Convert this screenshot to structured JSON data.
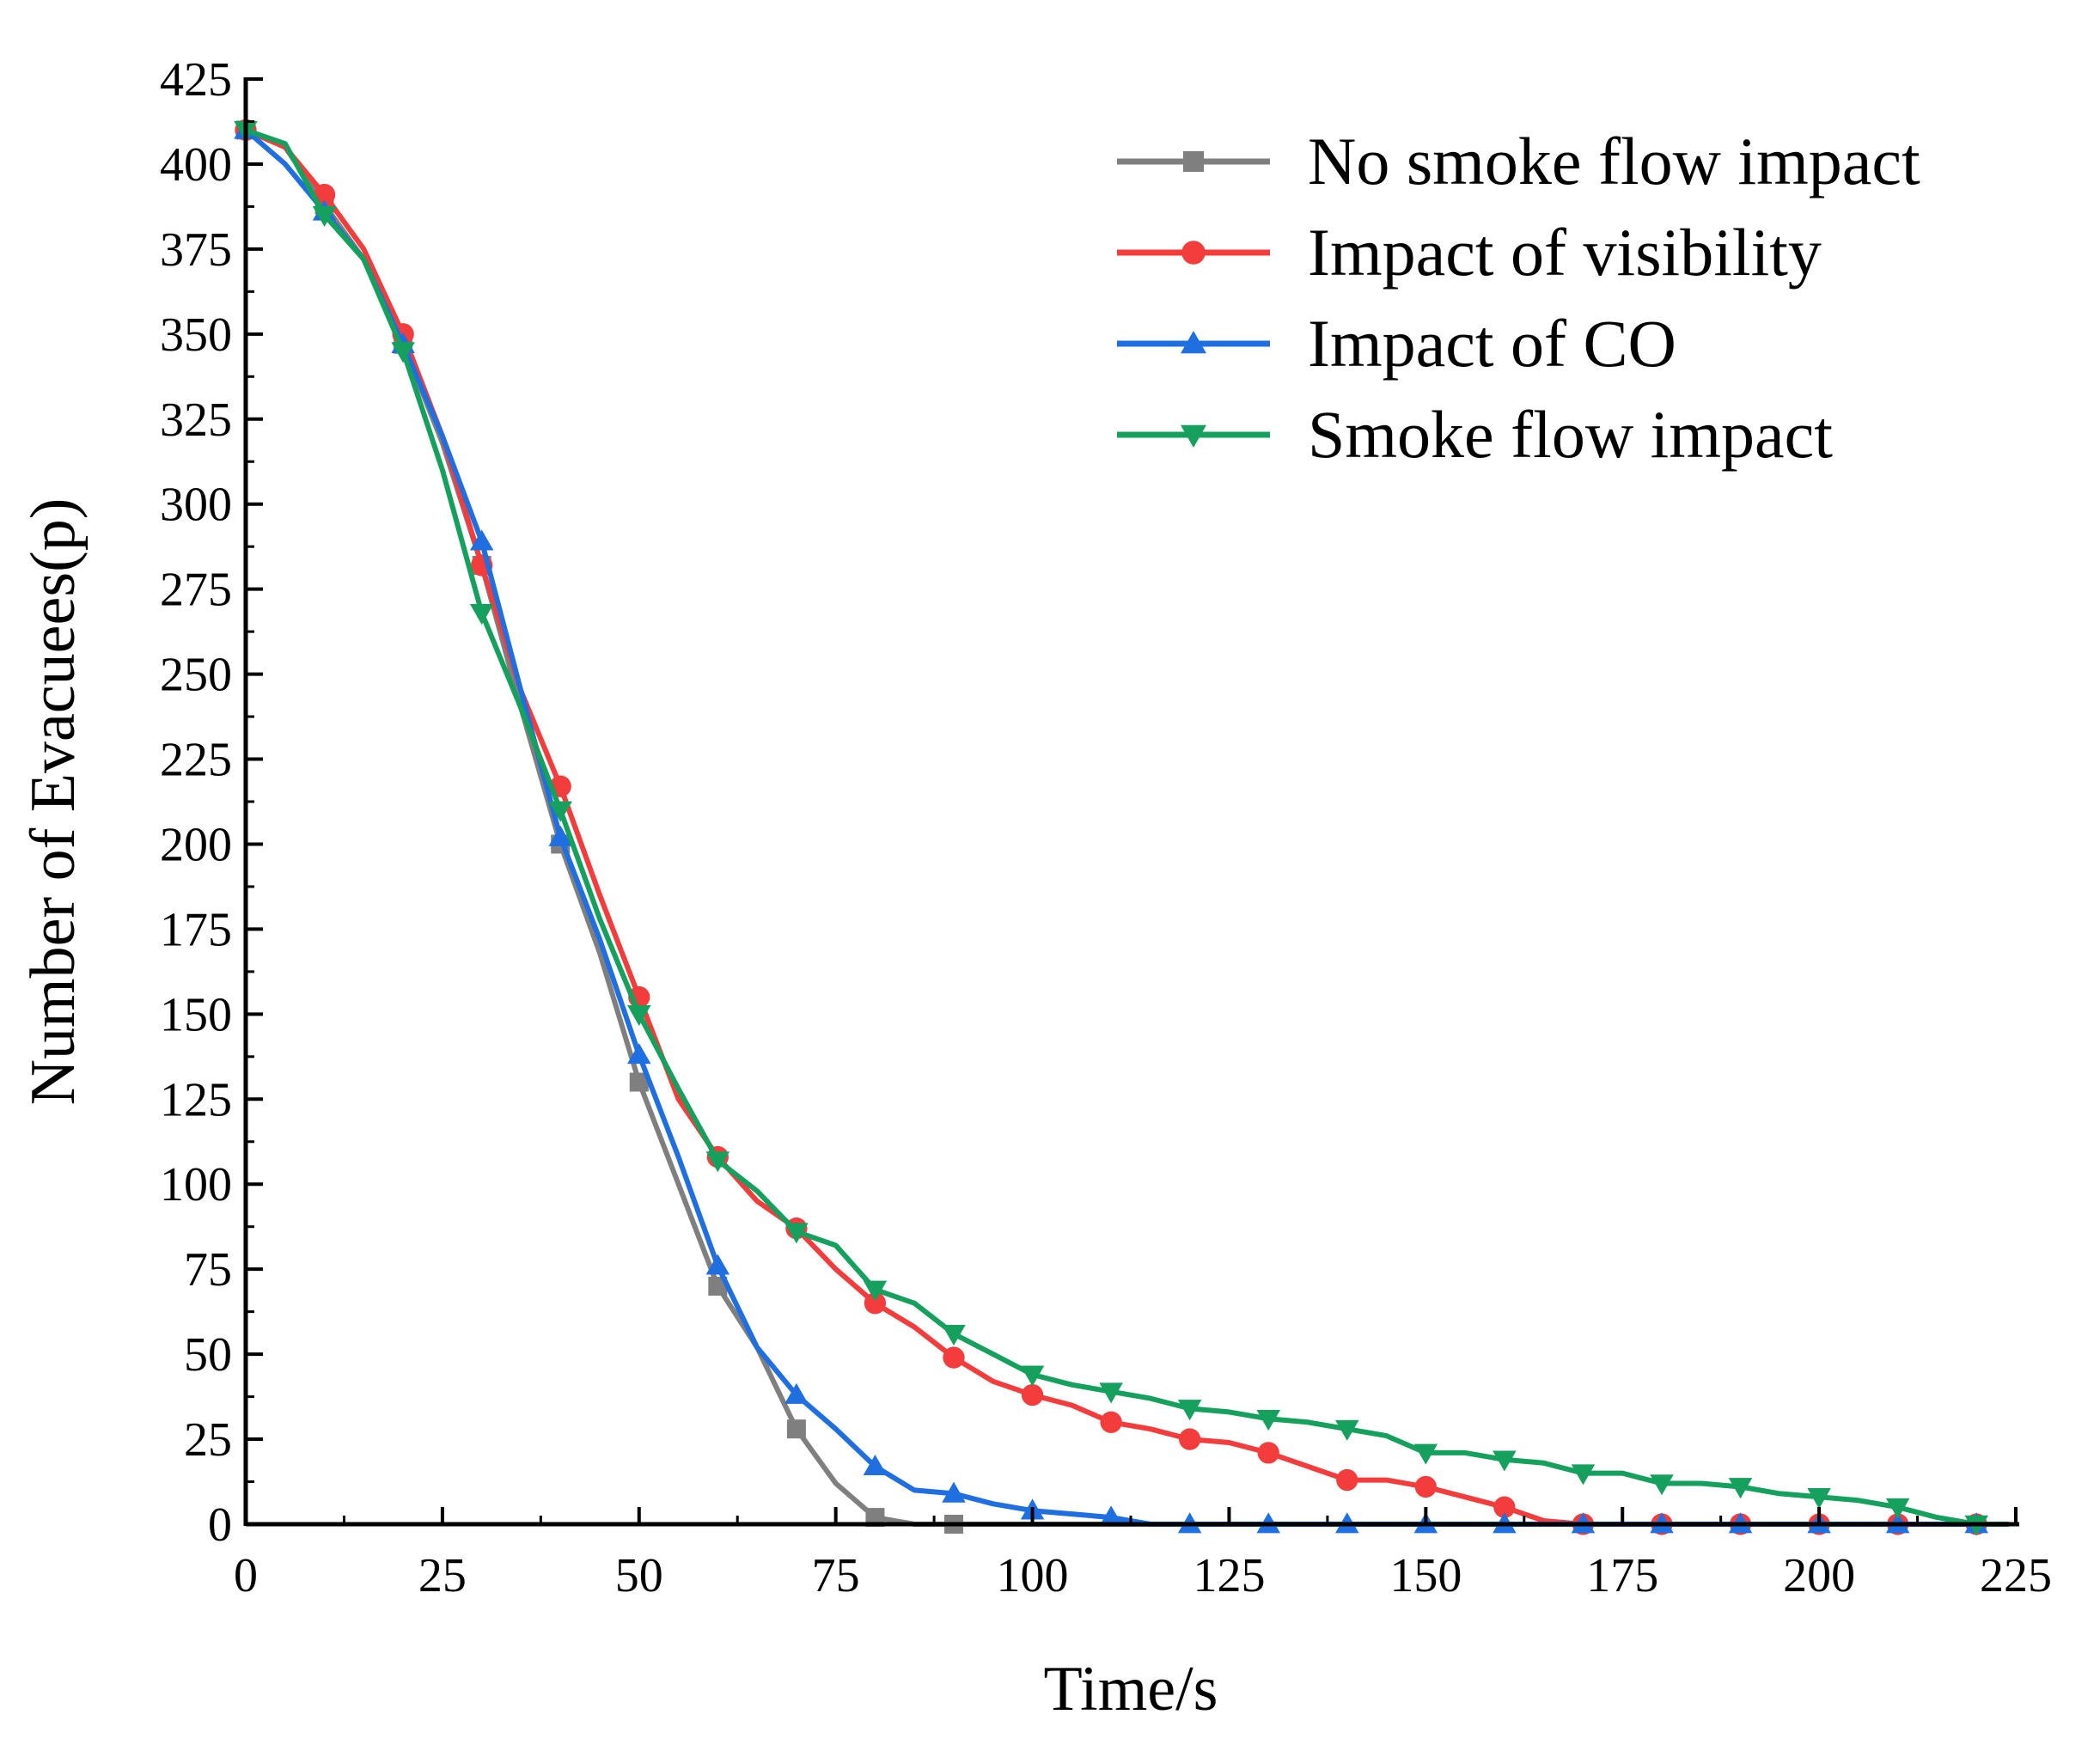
{
  "chart_data": {
    "type": "line",
    "title": "",
    "xlabel": "Time/s",
    "ylabel": "Number of Evacuees(p)",
    "xlim": [
      0,
      225
    ],
    "ylim": [
      0,
      425
    ],
    "xticks": [
      0,
      25,
      50,
      75,
      100,
      125,
      150,
      175,
      200,
      225
    ],
    "yticks": [
      0,
      25,
      50,
      75,
      100,
      125,
      150,
      175,
      200,
      225,
      250,
      275,
      300,
      325,
      350,
      375,
      400,
      425
    ],
    "grid": false,
    "legend_position": "top-right",
    "series": [
      {
        "name": "No smoke flow impact",
        "color": "#7f7f7f",
        "marker": "square",
        "x": [
          0,
          5,
          10,
          15,
          20,
          25,
          30,
          35,
          40,
          45,
          50,
          55,
          60,
          65,
          70,
          75,
          80,
          85,
          90,
          100,
          110,
          120,
          130,
          140,
          150,
          160,
          170,
          180,
          190,
          200,
          210,
          220,
          224
        ],
        "y": [
          410,
          405,
          388,
          372,
          347,
          318,
          282,
          240,
          200,
          168,
          130,
          100,
          70,
          52,
          28,
          12,
          2,
          0,
          0,
          0,
          0,
          0,
          0,
          0,
          0,
          0,
          0,
          0,
          0,
          0,
          0,
          0,
          0
        ],
        "marker_x": [
          0,
          10,
          20,
          30,
          40,
          50,
          60,
          70,
          80,
          90
        ],
        "marker_y": [
          410,
          388,
          347,
          282,
          200,
          130,
          70,
          28,
          2,
          0
        ]
      },
      {
        "name": "Impact of visibility",
        "color": "#f33c3c",
        "marker": "circle",
        "x": [
          0,
          5,
          10,
          15,
          20,
          25,
          30,
          35,
          40,
          45,
          50,
          55,
          60,
          65,
          70,
          75,
          80,
          85,
          90,
          95,
          100,
          105,
          110,
          115,
          120,
          125,
          130,
          135,
          140,
          145,
          150,
          155,
          160,
          165,
          170,
          175,
          180,
          190,
          200,
          210,
          220,
          224
        ],
        "y": [
          410,
          405,
          391,
          375,
          350,
          320,
          282,
          245,
          217,
          185,
          155,
          125,
          108,
          95,
          87,
          75,
          65,
          58,
          49,
          42,
          38,
          35,
          30,
          28,
          25,
          24,
          21,
          17,
          13,
          13,
          11,
          8,
          5,
          1,
          0,
          0,
          0,
          0,
          0,
          0,
          0,
          0
        ],
        "marker_x": [
          0,
          10,
          20,
          30,
          40,
          50,
          60,
          70,
          80,
          90,
          100,
          110,
          120,
          130,
          140,
          150,
          160,
          170,
          180,
          190,
          200,
          210,
          220
        ],
        "marker_y": [
          410,
          391,
          350,
          282,
          217,
          155,
          108,
          87,
          65,
          49,
          38,
          30,
          25,
          21,
          13,
          11,
          5,
          0,
          0,
          0,
          0,
          0,
          0
        ]
      },
      {
        "name": "Impact of CO",
        "color": "#1f6fe0",
        "marker": "triangle-up",
        "x": [
          0,
          5,
          10,
          15,
          20,
          25,
          30,
          35,
          40,
          45,
          50,
          55,
          60,
          65,
          70,
          75,
          80,
          85,
          90,
          95,
          100,
          105,
          110,
          115,
          120,
          130,
          140,
          150,
          160,
          170,
          180,
          190,
          200,
          210,
          220,
          224
        ],
        "y": [
          410,
          400,
          386,
          372,
          347,
          320,
          289,
          245,
          202,
          172,
          138,
          108,
          76,
          52,
          38,
          28,
          17,
          10,
          9,
          6,
          4,
          3,
          2,
          0,
          0,
          0,
          0,
          0,
          0,
          0,
          0,
          0,
          0,
          0,
          0,
          0
        ],
        "marker_x": [
          0,
          10,
          20,
          30,
          40,
          50,
          60,
          70,
          80,
          90,
          100,
          110,
          120,
          130,
          140,
          150,
          160,
          170,
          180,
          190,
          200,
          210,
          220
        ],
        "marker_y": [
          410,
          386,
          347,
          289,
          202,
          138,
          76,
          38,
          17,
          9,
          4,
          2,
          0,
          0,
          0,
          0,
          0,
          0,
          0,
          0,
          0,
          0,
          0
        ]
      },
      {
        "name": "Smoke flow impact",
        "color": "#16a05d",
        "marker": "triangle-down",
        "x": [
          0,
          5,
          10,
          15,
          20,
          25,
          30,
          35,
          40,
          45,
          50,
          55,
          60,
          65,
          70,
          75,
          80,
          85,
          90,
          95,
          100,
          105,
          110,
          115,
          120,
          125,
          130,
          135,
          140,
          145,
          150,
          155,
          160,
          165,
          170,
          175,
          180,
          185,
          190,
          195,
          200,
          205,
          210,
          215,
          220,
          224
        ],
        "y": [
          410,
          406,
          385,
          372,
          345,
          310,
          268,
          240,
          210,
          178,
          150,
          128,
          107,
          98,
          86,
          82,
          69,
          65,
          56,
          50,
          44,
          41,
          39,
          37,
          34,
          33,
          31,
          30,
          28,
          26,
          21,
          21,
          19,
          18,
          15,
          15,
          12,
          12,
          11,
          9,
          8,
          7,
          5,
          2,
          0,
          0
        ],
        "marker_x": [
          0,
          10,
          20,
          30,
          40,
          50,
          60,
          70,
          80,
          90,
          100,
          110,
          120,
          130,
          140,
          150,
          160,
          170,
          180,
          190,
          200,
          210,
          220
        ],
        "marker_y": [
          410,
          385,
          345,
          268,
          210,
          150,
          107,
          86,
          69,
          56,
          44,
          39,
          34,
          31,
          28,
          21,
          19,
          15,
          12,
          11,
          8,
          5,
          0
        ]
      }
    ]
  }
}
